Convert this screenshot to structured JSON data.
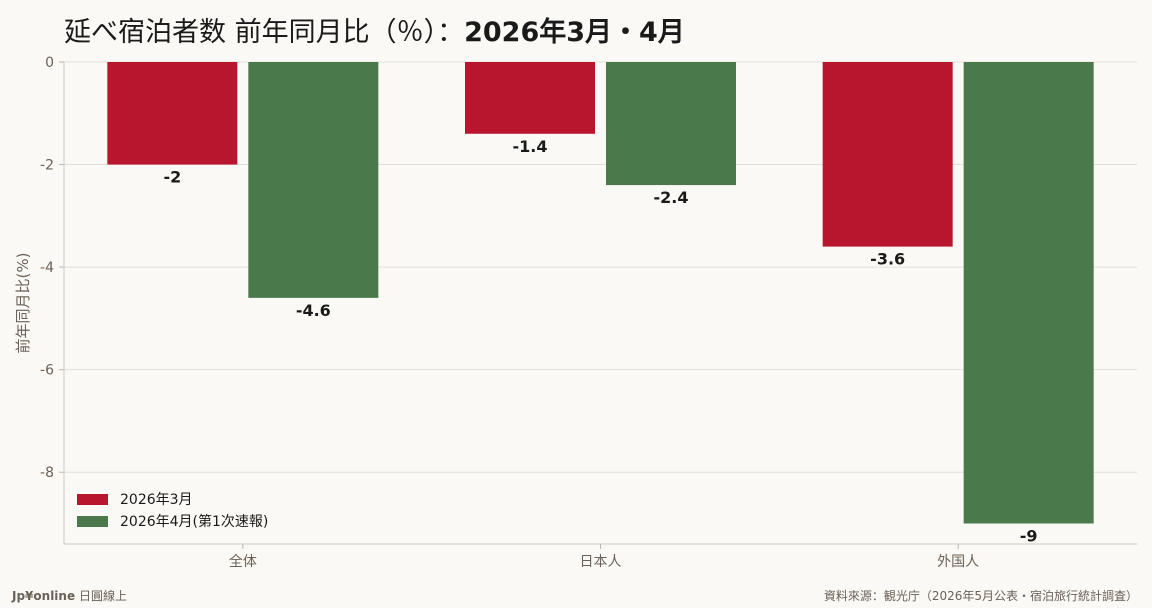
{
  "title": {
    "main": "延べ宿泊者数 前年同月比（％）：",
    "period": "2026年3月・4月"
  },
  "footer": {
    "brand": "Jp¥online",
    "brand_sub": "日圓線上",
    "source": "資料來源：観光庁（2026年5月公表・宿泊旅行統計調査）"
  },
  "chart_data": {
    "type": "bar",
    "categories": [
      "全体",
      "日本人",
      "外国人"
    ],
    "series": [
      {
        "name": "2026年3月",
        "values": [
          -2,
          -1.4,
          -3.6
        ],
        "color": "#b8152e"
      },
      {
        "name": "2026年4月(第1次速報)",
        "values": [
          -4.6,
          -2.4,
          -9
        ],
        "color": "#4a7a4b"
      }
    ],
    "value_labels": [
      [
        "-2",
        "-1.4",
        "-3.6"
      ],
      [
        "-4.6",
        "-2.4",
        "-9"
      ]
    ],
    "ylabel": "前年同月比(%)",
    "ylim": [
      -9.4,
      0
    ],
    "yticks": [
      0,
      -2,
      -4,
      -6,
      -8
    ],
    "ytick_labels": [
      "0",
      "-2",
      "-4",
      "-6",
      "-8"
    ],
    "grid": true,
    "legend_position": "bottom-left"
  }
}
